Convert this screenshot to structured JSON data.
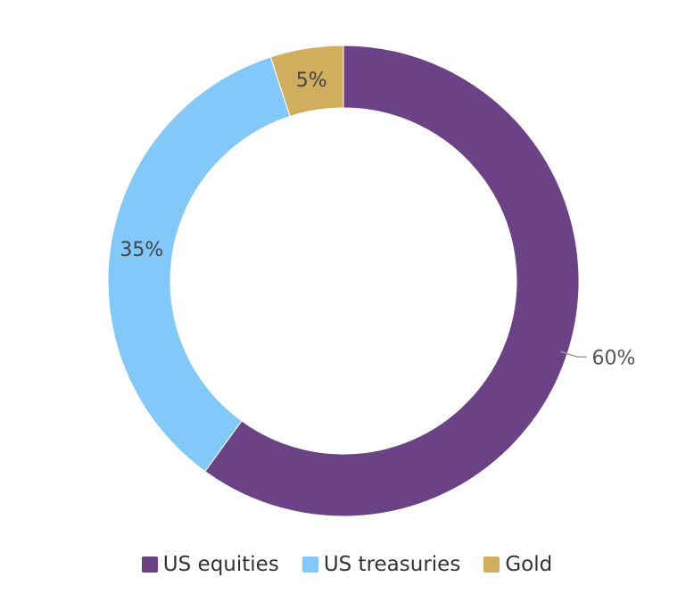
{
  "chart_data": {
    "type": "pie",
    "donut": true,
    "slices": [
      {
        "name": "US equities",
        "value": 60,
        "label": "60%",
        "color": "#6b4285"
      },
      {
        "name": "US treasuries",
        "value": 35,
        "label": "35%",
        "color": "#82c9fa"
      },
      {
        "name": "Gold",
        "value": 5,
        "label": "5%",
        "color": "#d1ad5e"
      }
    ],
    "legend_position": "bottom"
  }
}
